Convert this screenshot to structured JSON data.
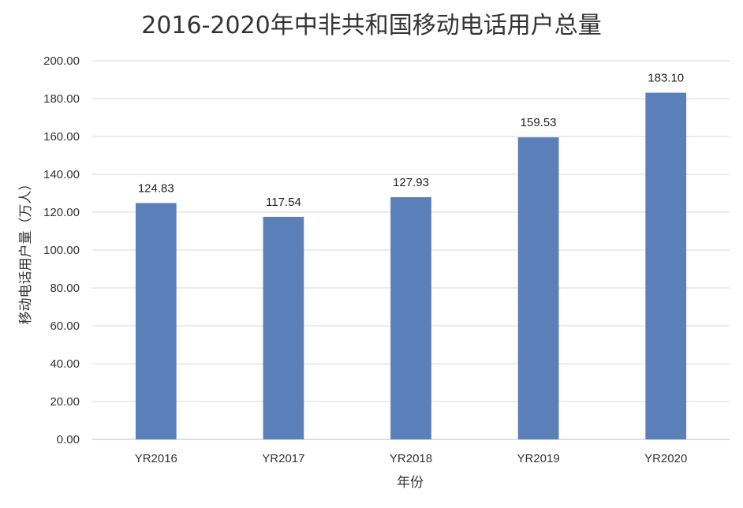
{
  "chart_data": {
    "type": "bar",
    "title": "2016-2020年中非共和国移动电话用户总量",
    "xlabel": "年份",
    "ylabel": "移动电话用户量（万人）",
    "categories": [
      "YR2016",
      "YR2017",
      "YR2018",
      "YR2019",
      "YR2020"
    ],
    "values": [
      124.83,
      117.54,
      127.93,
      159.53,
      183.1
    ],
    "data_labels": [
      "124.83",
      "117.54",
      "127.93",
      "159.53",
      "183.10"
    ],
    "ylim": [
      0,
      200
    ],
    "yticks": [
      "0.00",
      "20.00",
      "40.00",
      "60.00",
      "80.00",
      "100.00",
      "120.00",
      "140.00",
      "160.00",
      "180.00",
      "200.00"
    ],
    "grid": true,
    "legend": "none",
    "bar_color": "#5b7fb8"
  }
}
